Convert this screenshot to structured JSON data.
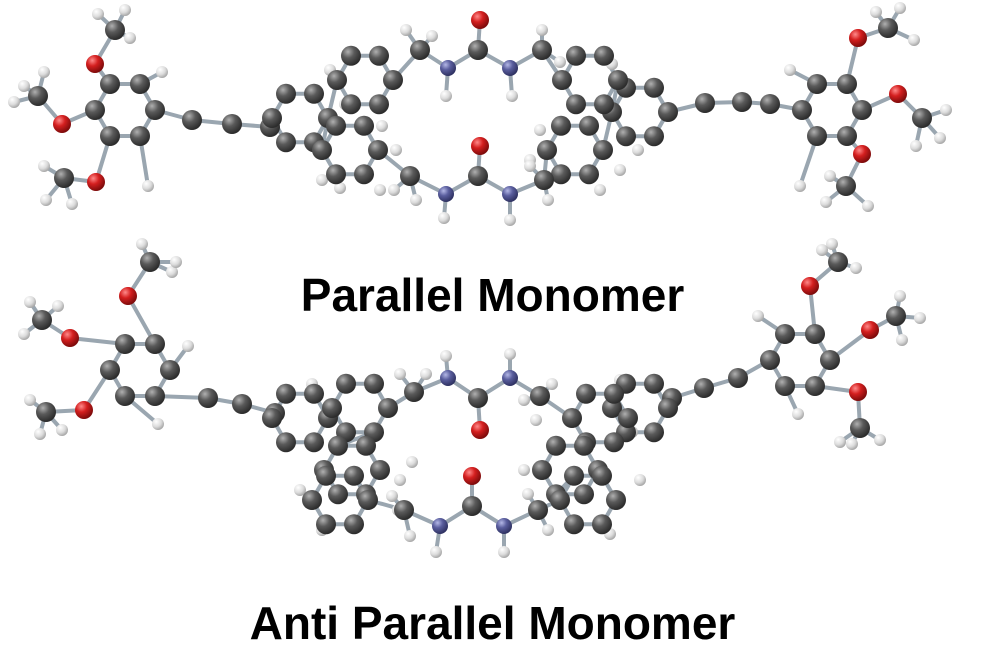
{
  "captions": {
    "parallel": "Parallel Monomer",
    "anti_parallel": "Anti Parallel Monomer"
  },
  "atom_colors": {
    "carbon": "#4a4a4a",
    "hydrogen": "#e6e6e6",
    "oxygen": "#d01c1c",
    "nitrogen": "#5b5f9e",
    "bond": "#9aa6b0"
  }
}
